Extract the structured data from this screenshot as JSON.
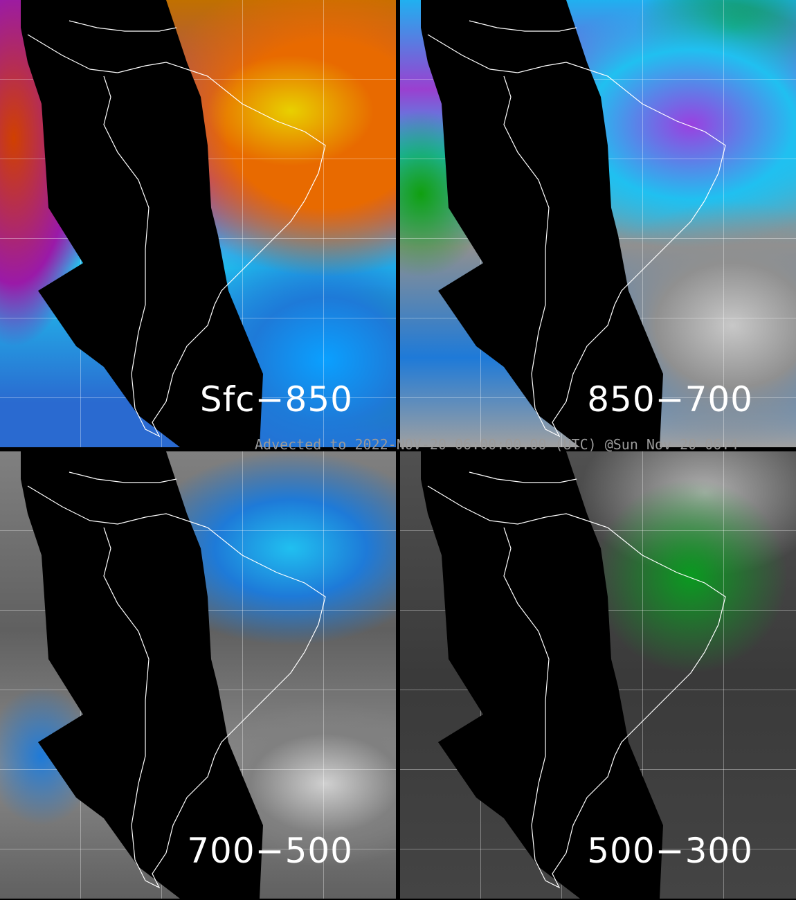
{
  "panels": [
    {
      "label": "Sfc−850"
    },
    {
      "label": "850−700"
    },
    {
      "label": "700−500"
    },
    {
      "label": "500−300"
    }
  ],
  "caption": "Advected to 2022-NOV-20 06:00:00.00 (UTC) @Sun Nov 20 06:4",
  "colors": {
    "background": "#000000",
    "coastline": "#ffffff",
    "caption": "#9a9a9a"
  }
}
